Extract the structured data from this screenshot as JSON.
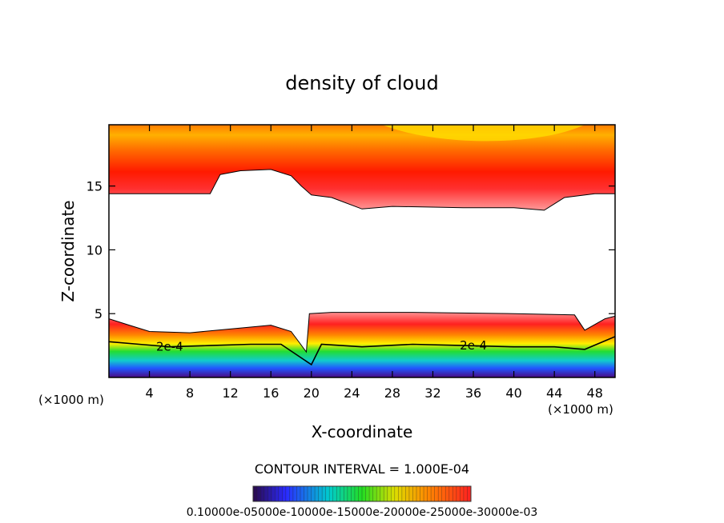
{
  "chart_data": {
    "type": "heatmap",
    "title": "density of cloud",
    "xlabel": "X-coordinate",
    "ylabel": "Z-coordinate",
    "x_unit_left": "(×1000 m)",
    "x_unit_right": "(×1000 m)",
    "xlim": [
      0,
      50
    ],
    "ylim": [
      0,
      19.8
    ],
    "x_ticks": [
      4,
      8,
      12,
      16,
      20,
      24,
      28,
      32,
      36,
      40,
      44,
      48
    ],
    "y_ticks": [
      5,
      10,
      15
    ],
    "contour_interval_text": "CONTOUR INTERVAL = 1.000E-04",
    "contour_labels": [
      "2e-4",
      "2e-4"
    ],
    "colorbar_label": "0.10000e-05000e-10000e-15000e-20000e-25000e-30000e-03",
    "colors": {
      "low": "#3b0a6e",
      "mid": "#22cc22",
      "high": "#ff0000",
      "peak": "#ffdd00"
    },
    "upper_cloud_base": [
      {
        "x": 0,
        "z": 14.4
      },
      {
        "x": 10,
        "z": 14.4
      },
      {
        "x": 11,
        "z": 15.9
      },
      {
        "x": 13,
        "z": 16.2
      },
      {
        "x": 16,
        "z": 16.3
      },
      {
        "x": 18,
        "z": 15.8
      },
      {
        "x": 19,
        "z": 15.0
      },
      {
        "x": 20,
        "z": 14.3
      },
      {
        "x": 22,
        "z": 14.1
      },
      {
        "x": 25,
        "z": 13.2
      },
      {
        "x": 28,
        "z": 13.4
      },
      {
        "x": 35,
        "z": 13.3
      },
      {
        "x": 40,
        "z": 13.3
      },
      {
        "x": 43,
        "z": 13.1
      },
      {
        "x": 45,
        "z": 14.1
      },
      {
        "x": 48,
        "z": 14.4
      },
      {
        "x": 50,
        "z": 14.4
      }
    ],
    "lower_cloud_top": [
      {
        "x": 0,
        "z": 4.6
      },
      {
        "x": 2,
        "z": 4.1
      },
      {
        "x": 4,
        "z": 3.6
      },
      {
        "x": 8,
        "z": 3.5
      },
      {
        "x": 12,
        "z": 3.8
      },
      {
        "x": 16,
        "z": 4.1
      },
      {
        "x": 18,
        "z": 3.6
      },
      {
        "x": 19.5,
        "z": 2.0
      },
      {
        "x": 19.8,
        "z": 5.0
      },
      {
        "x": 22,
        "z": 5.1
      },
      {
        "x": 30,
        "z": 5.1
      },
      {
        "x": 40,
        "z": 5.0
      },
      {
        "x": 46,
        "z": 4.9
      },
      {
        "x": 47,
        "z": 3.7
      },
      {
        "x": 49,
        "z": 4.6
      },
      {
        "x": 50,
        "z": 4.8
      }
    ],
    "contour_2e4": [
      {
        "x": 0,
        "z": 2.8
      },
      {
        "x": 3,
        "z": 2.6
      },
      {
        "x": 6,
        "z": 2.4
      },
      {
        "x": 10,
        "z": 2.5
      },
      {
        "x": 14,
        "z": 2.6
      },
      {
        "x": 17,
        "z": 2.6
      },
      {
        "x": 20,
        "z": 1.0
      },
      {
        "x": 21,
        "z": 2.6
      },
      {
        "x": 25,
        "z": 2.4
      },
      {
        "x": 30,
        "z": 2.6
      },
      {
        "x": 35,
        "z": 2.5
      },
      {
        "x": 40,
        "z": 2.4
      },
      {
        "x": 44,
        "z": 2.4
      },
      {
        "x": 47,
        "z": 2.2
      },
      {
        "x": 50,
        "z": 3.2
      }
    ]
  }
}
